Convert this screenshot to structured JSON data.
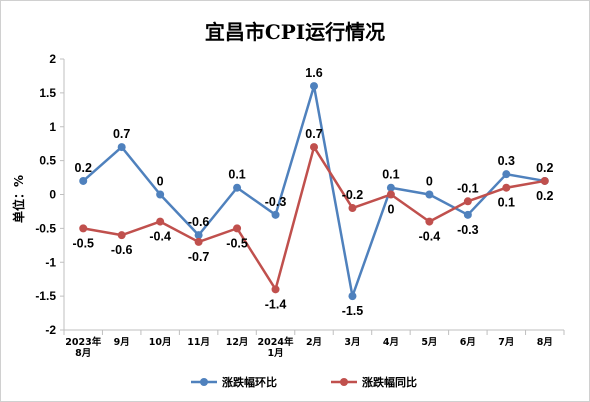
{
  "chart_data": {
    "type": "line",
    "title": "宜昌市CPI运行情况",
    "ylabel": "单位：%",
    "xlabel": "",
    "categories": [
      [
        "2023年",
        "8月"
      ],
      [
        "9月"
      ],
      [
        "10月"
      ],
      [
        "11月"
      ],
      [
        "12月"
      ],
      [
        "2024年",
        "1月"
      ],
      [
        "2月"
      ],
      [
        "3月"
      ],
      [
        "4月"
      ],
      [
        "5月"
      ],
      [
        "6月"
      ],
      [
        "7月"
      ],
      [
        "8月"
      ]
    ],
    "ylim": [
      -2,
      2
    ],
    "yticks": [
      2,
      1.5,
      1,
      0.5,
      0,
      -0.5,
      -1,
      -1.5,
      -2
    ],
    "ytick_labels": [
      "2",
      "1.5",
      "1",
      "0.5",
      "0",
      "-0.5",
      "-1",
      "-1.5",
      "-2"
    ],
    "grid": false,
    "legend_position": "bottom",
    "series": [
      {
        "name": "涨跌幅环比",
        "color": "#4f81bd",
        "values": [
          0.2,
          0.7,
          0,
          -0.6,
          0.1,
          -0.3,
          1.6,
          -1.5,
          0.1,
          0,
          -0.3,
          0.3,
          0.2
        ],
        "labels": [
          "0.2",
          "0.7",
          "0",
          "-0.6",
          "0.1",
          "-0.3",
          "1.6",
          "-1.5",
          "0.1",
          "0",
          "-0.3",
          "0.3",
          "0.2"
        ],
        "label_pos": [
          "above",
          "above",
          "above",
          "above",
          "above",
          "above",
          "above",
          "below",
          "above",
          "above",
          "below",
          "above",
          "above"
        ]
      },
      {
        "name": "涨跌幅同比",
        "color": "#c0504d",
        "values": [
          -0.5,
          -0.6,
          -0.4,
          -0.7,
          -0.5,
          -1.4,
          0.7,
          -0.2,
          0,
          -0.4,
          -0.1,
          0.1,
          0.2
        ],
        "labels": [
          "-0.5",
          "-0.6",
          "-0.4",
          "-0.7",
          "-0.5",
          "-1.4",
          "0.7",
          "-0.2",
          "0",
          "-0.4",
          "-0.1",
          "0.1",
          "0.2"
        ],
        "label_pos": [
          "below",
          "below",
          "below",
          "below",
          "below",
          "below",
          "above",
          "above",
          "below",
          "below",
          "above",
          "below",
          "below"
        ]
      }
    ]
  }
}
